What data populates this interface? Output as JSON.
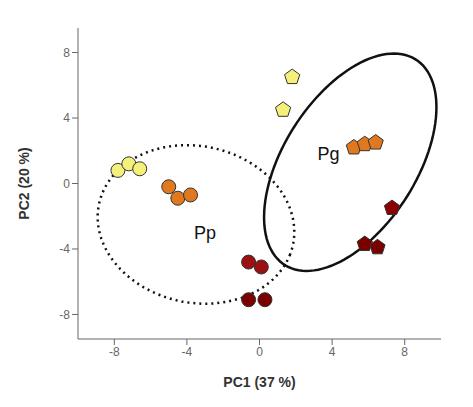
{
  "chart_data": {
    "type": "scatter",
    "xlabel": "PC1 (37 %)",
    "ylabel": "PC2 (20 %)",
    "xlim": [
      -10,
      10
    ],
    "ylim": [
      -9.5,
      9.5
    ],
    "xticks": [
      -8,
      -4,
      0,
      4,
      8
    ],
    "yticks": [
      -8,
      -4,
      0,
      4,
      8
    ],
    "series": [
      {
        "marker": "circle",
        "x": [
          -7.8,
          -7.2,
          -6.6,
          -5.0,
          -4.5,
          -3.8,
          -0.6,
          0.1,
          -0.6,
          0.3
        ],
        "values": [
          0.8,
          1.2,
          0.9,
          -0.2,
          -0.9,
          -0.7,
          -4.8,
          -5.1,
          -7.1,
          -7.1
        ],
        "colors": [
          "#f5f07a",
          "#f5f07a",
          "#f5f07a",
          "#e07820",
          "#e07820",
          "#e07820",
          "#9b1010",
          "#9b1010",
          "#7a0000",
          "#7a0000"
        ],
        "ellipse": {
          "cx": -3.5,
          "cy": -2.5,
          "width": 11.0,
          "height": 9.5,
          "angle": -20,
          "line_style": "dotted",
          "color": "#111111"
        }
      },
      {
        "marker": "pentagon",
        "x": [
          1.8,
          1.3,
          5.2,
          5.8,
          6.4,
          7.3,
          5.8,
          6.5
        ],
        "values": [
          6.5,
          4.5,
          2.2,
          2.4,
          2.5,
          -1.5,
          -3.7,
          -3.9
        ],
        "colors": [
          "#f5f07a",
          "#f5f07a",
          "#e07820",
          "#e07820",
          "#e07820",
          "#8b0000",
          "#7a0000",
          "#7a0000"
        ],
        "ellipse": {
          "cx": 5.0,
          "cy": 1.3,
          "width": 7.5,
          "height": 14.5,
          "angle": -28,
          "line_style": "solid",
          "color": "#111111"
        }
      }
    ],
    "annotations": [
      {
        "text": "Pp",
        "x": -3.0,
        "y": -3.0
      },
      {
        "text": "Pg",
        "x": 3.8,
        "y": 1.8
      }
    ]
  }
}
